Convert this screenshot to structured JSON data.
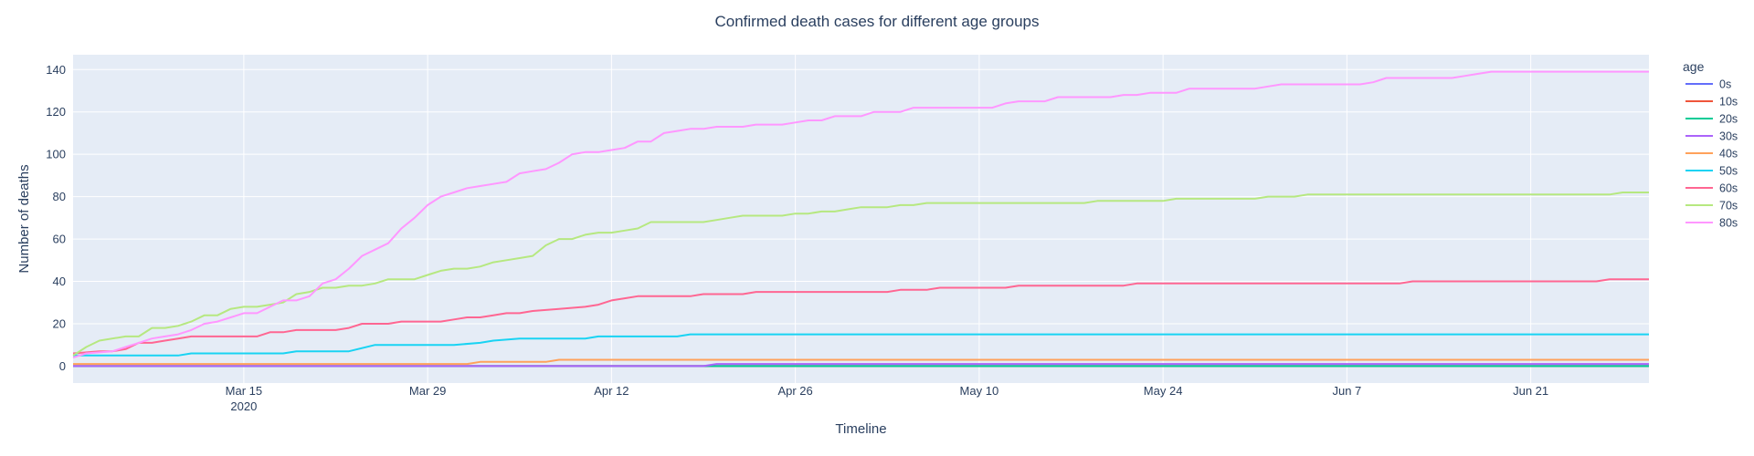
{
  "chart_data": {
    "type": "line",
    "title": "Confirmed death cases for different age groups",
    "xlabel": "Timeline",
    "ylabel": "Number of deaths",
    "x_start": "2020-03-02",
    "x_end": "2020-06-30",
    "xlim": [
      "2020-03-02",
      "2020-06-30"
    ],
    "ylim": [
      -8,
      147
    ],
    "grid": true,
    "x_ticks": [
      {
        "date": "2020-03-15",
        "label": "Mar 15",
        "sublabel": "2020"
      },
      {
        "date": "2020-03-29",
        "label": "Mar 29"
      },
      {
        "date": "2020-04-12",
        "label": "Apr 12"
      },
      {
        "date": "2020-04-26",
        "label": "Apr 26"
      },
      {
        "date": "2020-05-10",
        "label": "May 10"
      },
      {
        "date": "2020-05-24",
        "label": "May 24"
      },
      {
        "date": "2020-06-07",
        "label": "Jun 7"
      },
      {
        "date": "2020-06-21",
        "label": "Jun 21"
      }
    ],
    "y_ticks": [
      0,
      20,
      40,
      60,
      80,
      100,
      120,
      140
    ],
    "legend": {
      "title": "age",
      "placement": "right"
    },
    "series": [
      {
        "name": "0s",
        "color": "#636efa",
        "points": [
          [
            "2020-03-02",
            0
          ],
          [
            "2020-06-30",
            0
          ]
        ]
      },
      {
        "name": "10s",
        "color": "#EF553B",
        "points": [
          [
            "2020-03-02",
            0
          ],
          [
            "2020-06-30",
            0
          ]
        ]
      },
      {
        "name": "20s",
        "color": "#00cc96",
        "points": [
          [
            "2020-03-02",
            0
          ],
          [
            "2020-06-30",
            0
          ]
        ]
      },
      {
        "name": "30s",
        "color": "#ab63fa",
        "points": [
          [
            "2020-03-02",
            0
          ],
          [
            "2020-04-19",
            0
          ],
          [
            "2020-04-20",
            1
          ],
          [
            "2020-06-30",
            1
          ]
        ]
      },
      {
        "name": "40s",
        "color": "#FFA15A",
        "points": [
          [
            "2020-03-02",
            1
          ],
          [
            "2020-04-01",
            1
          ],
          [
            "2020-04-02",
            2
          ],
          [
            "2020-04-07",
            2
          ],
          [
            "2020-04-08",
            3
          ],
          [
            "2020-06-30",
            3
          ]
        ]
      },
      {
        "name": "50s",
        "color": "#19d3f3",
        "points": [
          [
            "2020-03-02",
            5
          ],
          [
            "2020-03-10",
            5
          ],
          [
            "2020-03-11",
            6
          ],
          [
            "2020-03-18",
            6
          ],
          [
            "2020-03-19",
            7
          ],
          [
            "2020-03-23",
            7
          ],
          [
            "2020-03-25",
            10
          ],
          [
            "2020-03-31",
            10
          ],
          [
            "2020-04-02",
            11
          ],
          [
            "2020-04-03",
            12
          ],
          [
            "2020-04-05",
            13
          ],
          [
            "2020-04-10",
            13
          ],
          [
            "2020-04-11",
            14
          ],
          [
            "2020-04-17",
            14
          ],
          [
            "2020-04-18",
            15
          ],
          [
            "2020-06-30",
            15
          ]
        ]
      },
      {
        "name": "60s",
        "color": "#FF6692",
        "points": [
          [
            "2020-03-02",
            6
          ],
          [
            "2020-03-04",
            7
          ],
          [
            "2020-03-05",
            7
          ],
          [
            "2020-03-06",
            8
          ],
          [
            "2020-03-07",
            11
          ],
          [
            "2020-03-08",
            11
          ],
          [
            "2020-03-09",
            12
          ],
          [
            "2020-03-10",
            13
          ],
          [
            "2020-03-11",
            14
          ],
          [
            "2020-03-16",
            14
          ],
          [
            "2020-03-17",
            16
          ],
          [
            "2020-03-18",
            16
          ],
          [
            "2020-03-19",
            17
          ],
          [
            "2020-03-22",
            17
          ],
          [
            "2020-03-23",
            18
          ],
          [
            "2020-03-24",
            20
          ],
          [
            "2020-03-26",
            20
          ],
          [
            "2020-03-27",
            21
          ],
          [
            "2020-03-30",
            21
          ],
          [
            "2020-03-31",
            22
          ],
          [
            "2020-04-01",
            23
          ],
          [
            "2020-04-02",
            23
          ],
          [
            "2020-04-03",
            24
          ],
          [
            "2020-04-04",
            25
          ],
          [
            "2020-04-05",
            25
          ],
          [
            "2020-04-06",
            26
          ],
          [
            "2020-04-08",
            27
          ],
          [
            "2020-04-10",
            28
          ],
          [
            "2020-04-11",
            29
          ],
          [
            "2020-04-12",
            31
          ],
          [
            "2020-04-13",
            32
          ],
          [
            "2020-04-14",
            33
          ],
          [
            "2020-04-18",
            33
          ],
          [
            "2020-04-19",
            34
          ],
          [
            "2020-04-22",
            34
          ],
          [
            "2020-04-23",
            35
          ],
          [
            "2020-05-03",
            35
          ],
          [
            "2020-05-04",
            36
          ],
          [
            "2020-05-06",
            36
          ],
          [
            "2020-05-07",
            37
          ],
          [
            "2020-05-12",
            37
          ],
          [
            "2020-05-13",
            38
          ],
          [
            "2020-05-21",
            38
          ],
          [
            "2020-05-22",
            39
          ],
          [
            "2020-06-11",
            39
          ],
          [
            "2020-06-12",
            40
          ],
          [
            "2020-06-26",
            40
          ],
          [
            "2020-06-27",
            41
          ],
          [
            "2020-06-30",
            41
          ]
        ]
      },
      {
        "name": "70s",
        "color": "#B6E880",
        "points": [
          [
            "2020-03-02",
            5
          ],
          [
            "2020-03-03",
            9
          ],
          [
            "2020-03-04",
            12
          ],
          [
            "2020-03-06",
            14
          ],
          [
            "2020-03-07",
            14
          ],
          [
            "2020-03-08",
            18
          ],
          [
            "2020-03-09",
            18
          ],
          [
            "2020-03-10",
            19
          ],
          [
            "2020-03-11",
            21
          ],
          [
            "2020-03-12",
            24
          ],
          [
            "2020-03-13",
            24
          ],
          [
            "2020-03-14",
            27
          ],
          [
            "2020-03-15",
            28
          ],
          [
            "2020-03-16",
            28
          ],
          [
            "2020-03-17",
            29
          ],
          [
            "2020-03-18",
            30
          ],
          [
            "2020-03-19",
            34
          ],
          [
            "2020-03-20",
            35
          ],
          [
            "2020-03-21",
            37
          ],
          [
            "2020-03-22",
            37
          ],
          [
            "2020-03-23",
            38
          ],
          [
            "2020-03-24",
            38
          ],
          [
            "2020-03-25",
            39
          ],
          [
            "2020-03-26",
            41
          ],
          [
            "2020-03-28",
            41
          ],
          [
            "2020-03-29",
            43
          ],
          [
            "2020-03-30",
            45
          ],
          [
            "2020-03-31",
            46
          ],
          [
            "2020-04-01",
            46
          ],
          [
            "2020-04-02",
            47
          ],
          [
            "2020-04-03",
            49
          ],
          [
            "2020-04-04",
            50
          ],
          [
            "2020-04-05",
            51
          ],
          [
            "2020-04-06",
            52
          ],
          [
            "2020-04-07",
            57
          ],
          [
            "2020-04-08",
            60
          ],
          [
            "2020-04-09",
            60
          ],
          [
            "2020-04-10",
            62
          ],
          [
            "2020-04-11",
            63
          ],
          [
            "2020-04-12",
            63
          ],
          [
            "2020-04-13",
            64
          ],
          [
            "2020-04-14",
            65
          ],
          [
            "2020-04-15",
            68
          ],
          [
            "2020-04-19",
            68
          ],
          [
            "2020-04-20",
            69
          ],
          [
            "2020-04-21",
            70
          ],
          [
            "2020-04-22",
            71
          ],
          [
            "2020-04-25",
            71
          ],
          [
            "2020-04-26",
            72
          ],
          [
            "2020-04-27",
            72
          ],
          [
            "2020-04-28",
            73
          ],
          [
            "2020-04-29",
            73
          ],
          [
            "2020-04-30",
            74
          ],
          [
            "2020-05-01",
            75
          ],
          [
            "2020-05-03",
            75
          ],
          [
            "2020-05-04",
            76
          ],
          [
            "2020-05-05",
            76
          ],
          [
            "2020-05-06",
            77
          ],
          [
            "2020-05-18",
            77
          ],
          [
            "2020-05-19",
            78
          ],
          [
            "2020-05-24",
            78
          ],
          [
            "2020-05-25",
            79
          ],
          [
            "2020-05-31",
            79
          ],
          [
            "2020-06-01",
            80
          ],
          [
            "2020-06-03",
            80
          ],
          [
            "2020-06-04",
            81
          ],
          [
            "2020-06-27",
            81
          ],
          [
            "2020-06-28",
            82
          ],
          [
            "2020-06-30",
            82
          ]
        ]
      },
      {
        "name": "80s",
        "color": "#FF97FF",
        "points": [
          [
            "2020-03-02",
            4
          ],
          [
            "2020-03-03",
            6
          ],
          [
            "2020-03-05",
            7
          ],
          [
            "2020-03-06",
            9
          ],
          [
            "2020-03-07",
            11
          ],
          [
            "2020-03-08",
            13
          ],
          [
            "2020-03-09",
            14
          ],
          [
            "2020-03-10",
            15
          ],
          [
            "2020-03-11",
            17
          ],
          [
            "2020-03-12",
            20
          ],
          [
            "2020-03-13",
            21
          ],
          [
            "2020-03-14",
            23
          ],
          [
            "2020-03-15",
            25
          ],
          [
            "2020-03-16",
            25
          ],
          [
            "2020-03-17",
            28
          ],
          [
            "2020-03-18",
            31
          ],
          [
            "2020-03-19",
            31
          ],
          [
            "2020-03-20",
            33
          ],
          [
            "2020-03-21",
            39
          ],
          [
            "2020-03-22",
            41
          ],
          [
            "2020-03-23",
            46
          ],
          [
            "2020-03-24",
            52
          ],
          [
            "2020-03-25",
            55
          ],
          [
            "2020-03-26",
            58
          ],
          [
            "2020-03-27",
            65
          ],
          [
            "2020-03-28",
            70
          ],
          [
            "2020-03-29",
            76
          ],
          [
            "2020-03-30",
            80
          ],
          [
            "2020-03-31",
            82
          ],
          [
            "2020-04-01",
            84
          ],
          [
            "2020-04-02",
            85
          ],
          [
            "2020-04-03",
            86
          ],
          [
            "2020-04-04",
            87
          ],
          [
            "2020-04-05",
            91
          ],
          [
            "2020-04-06",
            92
          ],
          [
            "2020-04-07",
            93
          ],
          [
            "2020-04-08",
            96
          ],
          [
            "2020-04-09",
            100
          ],
          [
            "2020-04-10",
            101
          ],
          [
            "2020-04-11",
            101
          ],
          [
            "2020-04-12",
            102
          ],
          [
            "2020-04-13",
            103
          ],
          [
            "2020-04-14",
            106
          ],
          [
            "2020-04-15",
            106
          ],
          [
            "2020-04-16",
            110
          ],
          [
            "2020-04-17",
            111
          ],
          [
            "2020-04-18",
            112
          ],
          [
            "2020-04-19",
            112
          ],
          [
            "2020-04-20",
            113
          ],
          [
            "2020-04-22",
            113
          ],
          [
            "2020-04-23",
            114
          ],
          [
            "2020-04-25",
            114
          ],
          [
            "2020-04-26",
            115
          ],
          [
            "2020-04-27",
            116
          ],
          [
            "2020-04-28",
            116
          ],
          [
            "2020-04-29",
            118
          ],
          [
            "2020-05-01",
            118
          ],
          [
            "2020-05-02",
            120
          ],
          [
            "2020-05-04",
            120
          ],
          [
            "2020-05-05",
            122
          ],
          [
            "2020-05-11",
            122
          ],
          [
            "2020-05-12",
            124
          ],
          [
            "2020-05-13",
            125
          ],
          [
            "2020-05-15",
            125
          ],
          [
            "2020-05-16",
            127
          ],
          [
            "2020-05-20",
            127
          ],
          [
            "2020-05-21",
            128
          ],
          [
            "2020-05-22",
            128
          ],
          [
            "2020-05-23",
            129
          ],
          [
            "2020-05-25",
            129
          ],
          [
            "2020-05-26",
            131
          ],
          [
            "2020-05-31",
            131
          ],
          [
            "2020-06-01",
            132
          ],
          [
            "2020-06-02",
            133
          ],
          [
            "2020-06-08",
            133
          ],
          [
            "2020-06-09",
            134
          ],
          [
            "2020-06-10",
            136
          ],
          [
            "2020-06-15",
            136
          ],
          [
            "2020-06-16",
            137
          ],
          [
            "2020-06-17",
            138
          ],
          [
            "2020-06-18",
            139
          ],
          [
            "2020-06-30",
            139
          ]
        ]
      }
    ]
  }
}
